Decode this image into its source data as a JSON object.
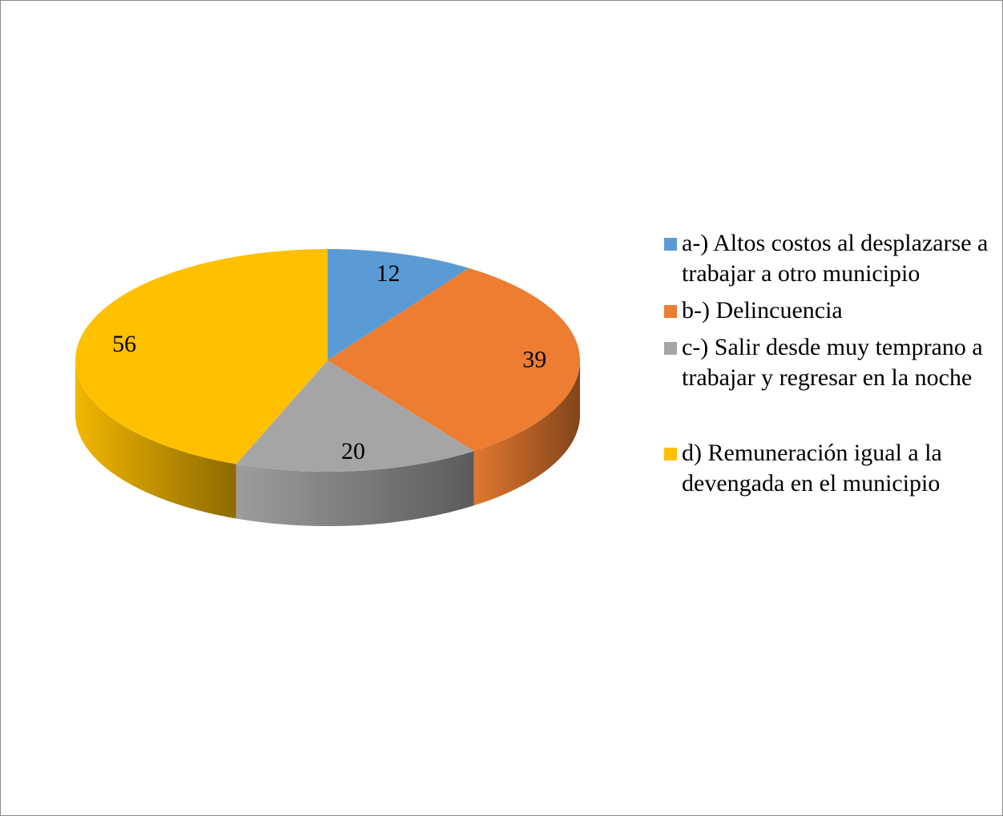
{
  "chart_data": {
    "type": "pie",
    "style": "3d",
    "legend_position": "right",
    "slices": [
      {
        "label": "a-) Altos costos al desplazarse a trabajar a otro municipio",
        "value": 12,
        "color": "#5B9BD5"
      },
      {
        "label": "b-) Delincuencia",
        "value": 39,
        "color": "#ED7D31"
      },
      {
        "label": "c-) Salir desde muy temprano a trabajar y regresar en la noche",
        "value": 20,
        "color": "#A5A5A5"
      },
      {
        "label": "d) Remuneración igual a la devengada en el municipio",
        "value": 56,
        "color": "#FFC000"
      }
    ]
  }
}
